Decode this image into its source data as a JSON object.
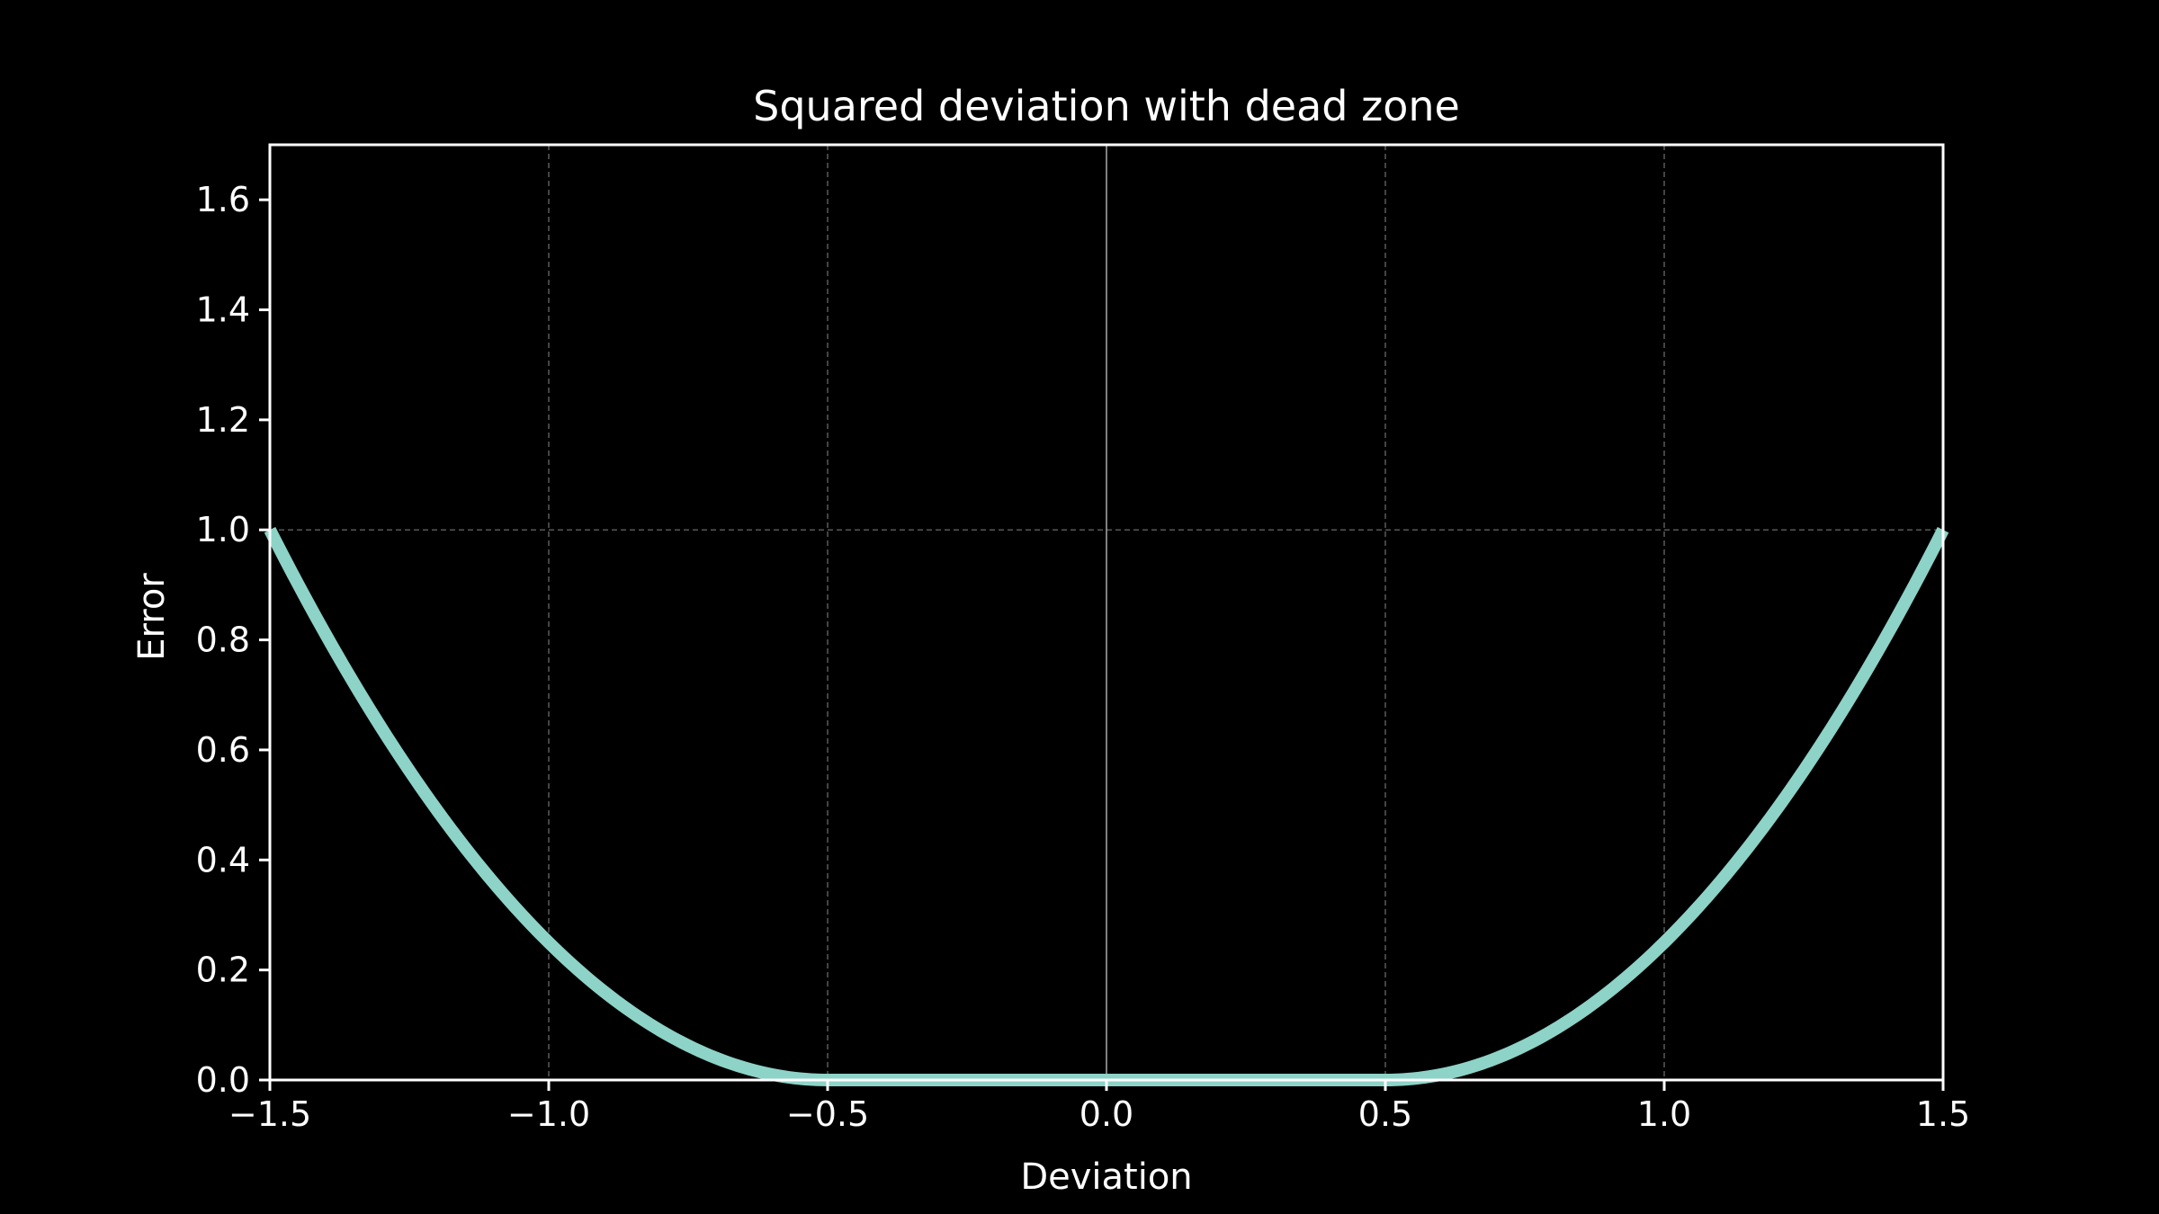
{
  "chart_data": {
    "type": "line",
    "title": "Squared deviation with dead zone",
    "xlabel": "Deviation",
    "ylabel": "Error",
    "xlim": [
      -1.5,
      1.5
    ],
    "ylim": [
      0.0,
      1.7
    ],
    "grid": true,
    "x_ticks": [
      -1.5,
      -1.0,
      -0.5,
      0.0,
      0.5,
      1.0,
      1.5
    ],
    "x_tick_labels": [
      "−1.5",
      "−1.0",
      "−0.5",
      "0.0",
      "0.5",
      "1.0",
      "1.5"
    ],
    "y_ticks": [
      0.0,
      0.2,
      0.4,
      0.6,
      0.8,
      1.0,
      1.2,
      1.4,
      1.6
    ],
    "y_tick_labels": [
      "0.0",
      "0.2",
      "0.4",
      "0.6",
      "0.8",
      "1.0",
      "1.2",
      "1.4",
      "1.6"
    ],
    "dead_zone": [
      -0.5,
      0.5
    ],
    "series": [
      {
        "color": "#8dd3c7",
        "x": [
          -1.5,
          -1.4,
          -1.3,
          -1.2,
          -1.1,
          -1.0,
          -0.9,
          -0.8,
          -0.7,
          -0.6,
          -0.5,
          -0.25,
          0.0,
          0.25,
          0.5,
          0.6,
          0.7,
          0.8,
          0.9,
          1.0,
          1.1,
          1.2,
          1.3,
          1.4,
          1.5
        ],
        "y": [
          1.0,
          0.81,
          0.64,
          0.49,
          0.36,
          0.25,
          0.16,
          0.09,
          0.04,
          0.01,
          0.0,
          0.0,
          0.0,
          0.0,
          0.0,
          0.01,
          0.04,
          0.09,
          0.16,
          0.25,
          0.36,
          0.49,
          0.64,
          0.81,
          1.0
        ]
      }
    ],
    "colors": {
      "background": "#000000",
      "axes": "#ffffff",
      "grid": "#b0b0b0",
      "zero_line": "#808080"
    }
  }
}
